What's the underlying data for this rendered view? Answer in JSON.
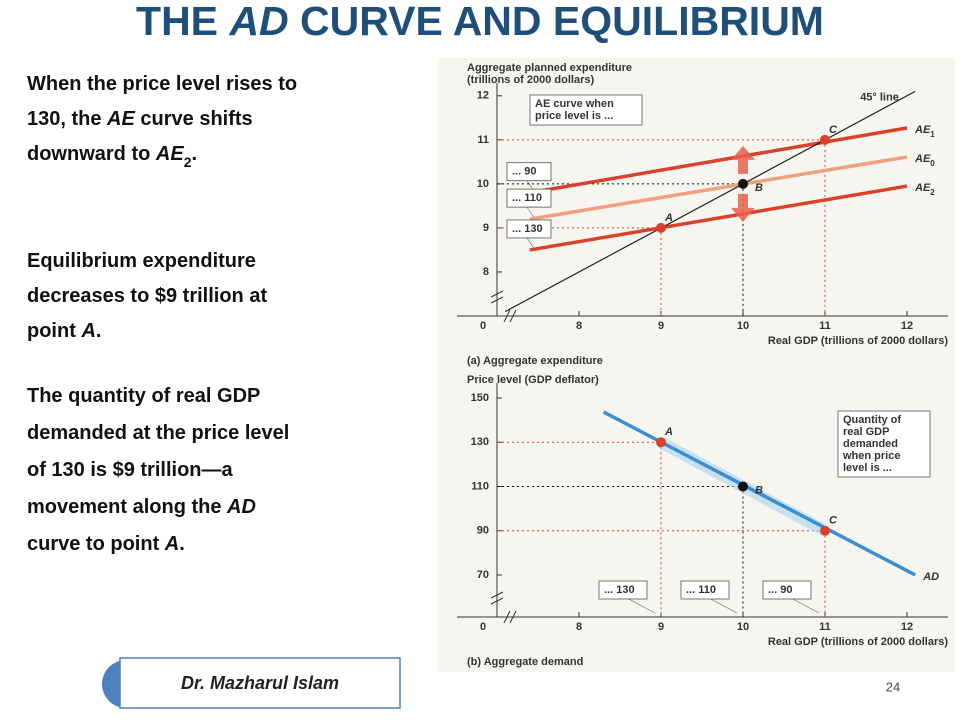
{
  "title": {
    "runs": [
      {
        "text": "THE "
      },
      {
        "text": "AD",
        "style": "italic"
      },
      {
        "text": " CURVE AND EQUILIBRIUM"
      }
    ]
  },
  "paragraphs": [
    [
      [
        {
          "text": "When the price level rises to"
        }
      ],
      [
        {
          "text": "130, the "
        },
        {
          "text": "AE",
          "style": "italic"
        },
        {
          "text": " curve shifts"
        }
      ],
      [
        {
          "text": "downward to "
        },
        {
          "text": "AE",
          "style": "italic"
        },
        {
          "text": "2",
          "style": "sub"
        },
        {
          "text": "."
        }
      ]
    ],
    [
      [
        {
          "text": "Equilibrium expenditure"
        }
      ],
      [
        {
          "text": "decreases to $9 trillion at"
        }
      ],
      [
        {
          "text": "point "
        },
        {
          "text": "A",
          "style": "italic"
        },
        {
          "text": "."
        }
      ]
    ],
    [
      [
        {
          "text": "The quantity of real GDP"
        }
      ],
      [
        {
          "text": "demanded at the price level"
        }
      ],
      [
        {
          "text": "of 130 is $9 trillion—a"
        }
      ],
      [
        {
          "text": "movement along the "
        },
        {
          "text": "AD",
          "style": "italic"
        }
      ],
      [
        {
          "text": "curve to point "
        },
        {
          "text": "A",
          "style": "italic"
        },
        {
          "text": "."
        }
      ]
    ]
  ],
  "author": "Dr. Mazharul Islam",
  "page_number": "24",
  "chart_data": [
    {
      "type": "line",
      "ylabel": [
        "Aggregate planned expenditure",
        "(trillions of 2000 dollars)"
      ],
      "xlabel": "Real GDP (trillions of 2000 dollars)",
      "caption": "(a) Aggregate expenditure",
      "origin_label": "0",
      "xlim": [
        7,
        12.5
      ],
      "ylim": [
        7,
        12.2
      ],
      "xticks": [
        8,
        9,
        10,
        11,
        12
      ],
      "yticks": [
        8,
        9,
        10,
        11,
        12
      ],
      "note": [
        "AE curve when",
        "price level is ..."
      ],
      "note_corner": "top-left",
      "series": [
        {
          "name": "AE",
          "subscript": "1",
          "color": "#d9412b",
          "x": [
            7.4,
            12
          ],
          "values": [
            9.8,
            11.27
          ],
          "price_label": "... 90"
        },
        {
          "name": "AE",
          "subscript": "0",
          "color": "#f0a07a",
          "x": [
            7.4,
            12
          ],
          "values": [
            9.2,
            10.61
          ],
          "price_label": "... 110"
        },
        {
          "name": "AE",
          "subscript": "2",
          "color": "#d9412b",
          "x": [
            7.4,
            12
          ],
          "values": [
            8.5,
            9.95
          ],
          "price_label": "... 130"
        },
        {
          "name": "45° line",
          "color": "#222222",
          "x": [
            7.1,
            12.1
          ],
          "values": [
            7.1,
            12.1
          ]
        }
      ],
      "points": [
        {
          "label": "A",
          "x": 9,
          "y": 9,
          "color": "#d9412b"
        },
        {
          "label": "B",
          "x": 10,
          "y": 10,
          "color": "#111111"
        },
        {
          "label": "C",
          "x": 11,
          "y": 11,
          "color": "#d9412b"
        }
      ]
    },
    {
      "type": "line",
      "ylabel": [
        "Price level (GDP deflator)"
      ],
      "xlabel": "Real GDP (trillions of 2000 dollars)",
      "caption": "(b) Aggregate demand",
      "origin_label": "0",
      "xlim": [
        7,
        12.5
      ],
      "ylim": [
        51,
        155
      ],
      "xticks": [
        8,
        9,
        10,
        11,
        12
      ],
      "yticks": [
        70,
        90,
        110,
        130,
        150
      ],
      "note": [
        "Quantity of",
        "real GDP",
        "demanded",
        "when price",
        "level is ..."
      ],
      "note_corner": "top-right",
      "series": [
        {
          "name": "AD",
          "color": "#3a8fd0",
          "x": [
            8.3,
            12.1
          ],
          "values": [
            143.7,
            70
          ]
        }
      ],
      "points": [
        {
          "label": "A",
          "x": 9,
          "y": 130,
          "color": "#d9412b",
          "price_label": "... 130"
        },
        {
          "label": "B",
          "x": 10,
          "y": 110,
          "color": "#111111",
          "price_label": "... 110"
        },
        {
          "label": "C",
          "x": 11,
          "y": 90,
          "color": "#d9412b",
          "price_label": "... 90"
        }
      ]
    }
  ]
}
